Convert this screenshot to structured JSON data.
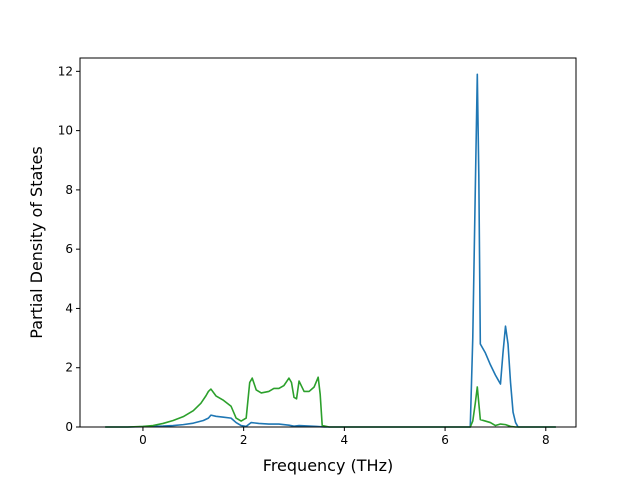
{
  "chart_data": {
    "type": "line",
    "title": "",
    "xlabel": "Frequency (THz)",
    "ylabel": "Partial Density of States",
    "xlim": [
      -1.25,
      8.6
    ],
    "ylim": [
      0,
      12.45
    ],
    "xticks": [
      0,
      2,
      4,
      6,
      8
    ],
    "yticks": [
      0,
      2,
      4,
      6,
      8,
      10,
      12
    ],
    "grid": false,
    "legend": "none",
    "series": [
      {
        "color": "#1f77b4",
        "x": [
          -0.75,
          -0.3,
          0.0,
          0.2,
          0.4,
          0.6,
          0.8,
          1.0,
          1.2,
          1.3,
          1.35,
          1.45,
          1.6,
          1.75,
          1.85,
          1.95,
          2.05,
          2.15,
          2.3,
          2.5,
          2.7,
          2.9,
          3.0,
          3.1,
          3.2,
          3.3,
          3.45,
          3.52,
          3.6,
          4.0,
          5.0,
          6.0,
          6.5,
          6.55,
          6.6,
          6.64,
          6.67,
          6.7,
          6.8,
          6.9,
          7.0,
          7.05,
          7.1,
          7.15,
          7.2,
          7.25,
          7.3,
          7.35,
          7.4,
          7.45,
          8.2
        ],
        "y": [
          0,
          0,
          0.01,
          0.02,
          0.03,
          0.05,
          0.08,
          0.13,
          0.22,
          0.3,
          0.4,
          0.36,
          0.33,
          0.3,
          0.15,
          0.05,
          0.02,
          0.15,
          0.12,
          0.1,
          0.1,
          0.06,
          0.03,
          0.05,
          0.04,
          0.03,
          0.02,
          0.01,
          0,
          0,
          0,
          0,
          0,
          3.0,
          8.0,
          11.9,
          8.5,
          2.8,
          2.5,
          2.1,
          1.75,
          1.6,
          1.45,
          2.5,
          3.4,
          2.8,
          1.5,
          0.5,
          0.15,
          0,
          0
        ]
      },
      {
        "color": "#2ca02c",
        "x": [
          -0.75,
          -0.3,
          0.0,
          0.2,
          0.4,
          0.6,
          0.8,
          1.0,
          1.15,
          1.25,
          1.3,
          1.35,
          1.45,
          1.6,
          1.75,
          1.85,
          1.95,
          2.05,
          2.12,
          2.17,
          2.25,
          2.35,
          2.5,
          2.6,
          2.7,
          2.8,
          2.9,
          2.95,
          3.0,
          3.05,
          3.1,
          3.2,
          3.3,
          3.4,
          3.48,
          3.52,
          3.56,
          3.7,
          4.0,
          5.0,
          6.0,
          6.5,
          6.55,
          6.6,
          6.64,
          6.7,
          6.8,
          6.9,
          7.0,
          7.1,
          7.2,
          7.3,
          7.4,
          8.2
        ],
        "y": [
          0,
          0,
          0.02,
          0.05,
          0.12,
          0.22,
          0.35,
          0.55,
          0.8,
          1.05,
          1.2,
          1.28,
          1.05,
          0.9,
          0.7,
          0.3,
          0.2,
          0.3,
          1.5,
          1.65,
          1.25,
          1.15,
          1.2,
          1.3,
          1.3,
          1.4,
          1.65,
          1.5,
          1.0,
          0.95,
          1.55,
          1.2,
          1.2,
          1.35,
          1.68,
          1.1,
          0.05,
          0,
          0,
          0,
          0,
          0,
          0.2,
          0.8,
          1.35,
          0.25,
          0.2,
          0.15,
          0.05,
          0.1,
          0.08,
          0.02,
          0,
          0
        ]
      }
    ]
  }
}
